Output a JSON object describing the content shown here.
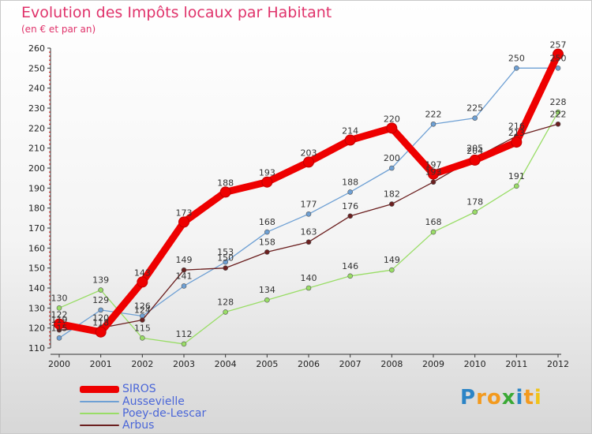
{
  "header": {
    "title": "Evolution des Impôts locaux par Habitant",
    "subtitle": "(en € et par an)"
  },
  "chart_data": {
    "type": "line",
    "title": "Evolution des Impôts locaux par Habitant",
    "subtitle": "(en € et par an)",
    "xlabel": "",
    "ylabel": "",
    "x": [
      "2000",
      "2001",
      "2002",
      "2003",
      "2004",
      "2005",
      "2006",
      "2007",
      "2008",
      "2009",
      "2010",
      "2011",
      "2012"
    ],
    "ylim": [
      110,
      260
    ],
    "yticks": [
      110,
      120,
      130,
      140,
      150,
      160,
      170,
      180,
      190,
      200,
      210,
      220,
      230,
      240,
      250,
      260
    ],
    "grid": false,
    "legend_position": "bottom-left",
    "series": [
      {
        "name": "SIROS",
        "color": "#ee0000",
        "values": [
          122,
          118,
          143,
          173,
          188,
          193,
          203,
          214,
          220,
          197,
          204,
          213,
          257
        ]
      },
      {
        "name": "Aussevielle",
        "color": "#6ea0d4",
        "values": [
          115,
          129,
          126,
          141,
          153,
          168,
          177,
          188,
          200,
          222,
          225,
          250,
          250
        ]
      },
      {
        "name": "Poey-de-Lescar",
        "color": "#99dd66",
        "values": [
          130,
          139,
          115,
          112,
          128,
          134,
          140,
          146,
          149,
          168,
          178,
          191,
          228
        ]
      },
      {
        "name": "Arbus",
        "color": "#6b1f1f",
        "values": [
          119,
          120,
          124,
          149,
          150,
          158,
          163,
          176,
          182,
          193,
          205,
          216,
          222
        ]
      }
    ]
  },
  "logo": {
    "letters": [
      "P",
      "r",
      "o",
      "x",
      "i",
      "t",
      "i"
    ],
    "colors": [
      "#2b84c6",
      "#f39a1e",
      "#f39a1e",
      "#3aa935",
      "#2b84c6",
      "#f39a1e",
      "#f0c419"
    ]
  }
}
